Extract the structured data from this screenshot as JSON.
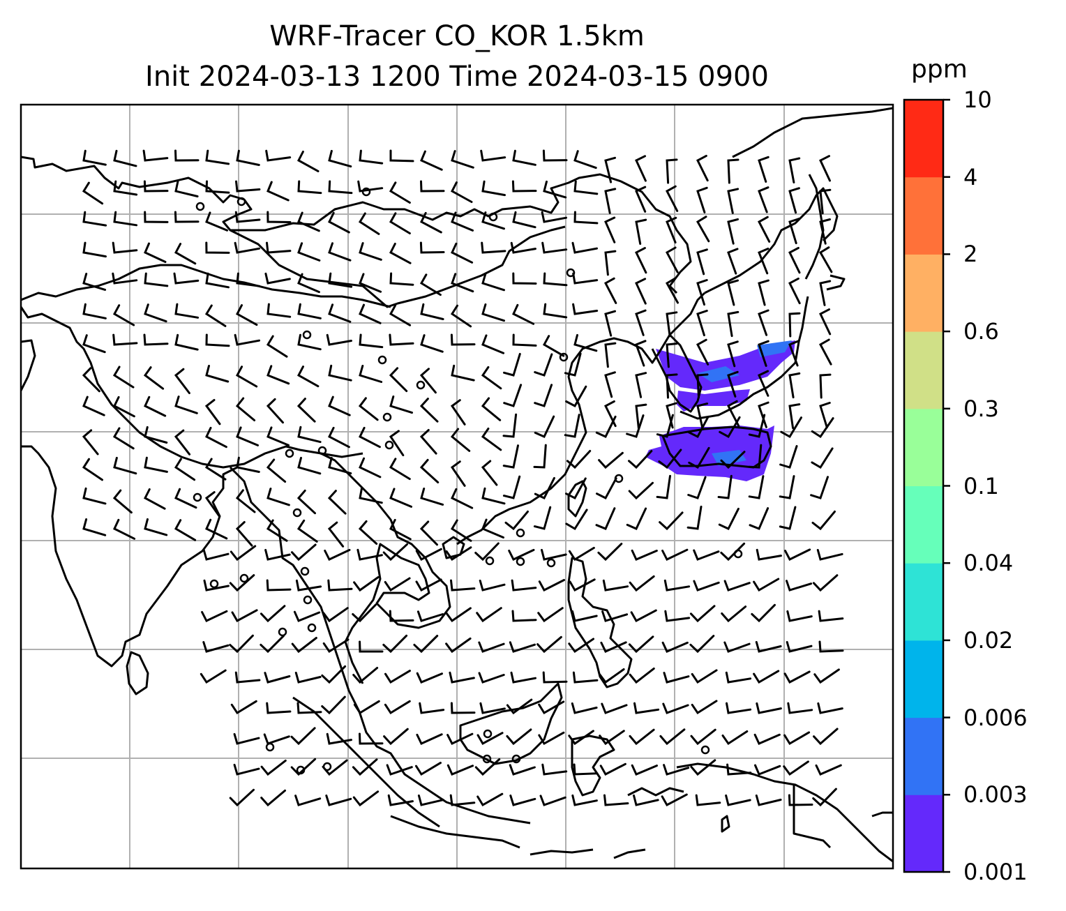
{
  "title": {
    "line1": "WRF-Tracer CO_KOR 1.5km",
    "line2": "Init 2024-03-13 1200 Time 2024-03-15 0900"
  },
  "map": {
    "grid": "on",
    "coastline_color": "#000000",
    "grid_color": "#b0b0b0"
  },
  "colorbar": {
    "unit": "ppm",
    "levels": [
      "0.001",
      "0.003",
      "0.006",
      "0.02",
      "0.04",
      "0.1",
      "0.3",
      "0.6",
      "2",
      "4",
      "10"
    ],
    "colors": [
      "#6429fb",
      "#3173f5",
      "#00b4eb",
      "#2ee3d6",
      "#66ffba",
      "#99ff99",
      "#d0e087",
      "#ffb063",
      "#ff7139",
      "#ff2a15"
    ]
  },
  "tracer_color": "#6429fb",
  "tracer_color_high": "#3173f5"
}
